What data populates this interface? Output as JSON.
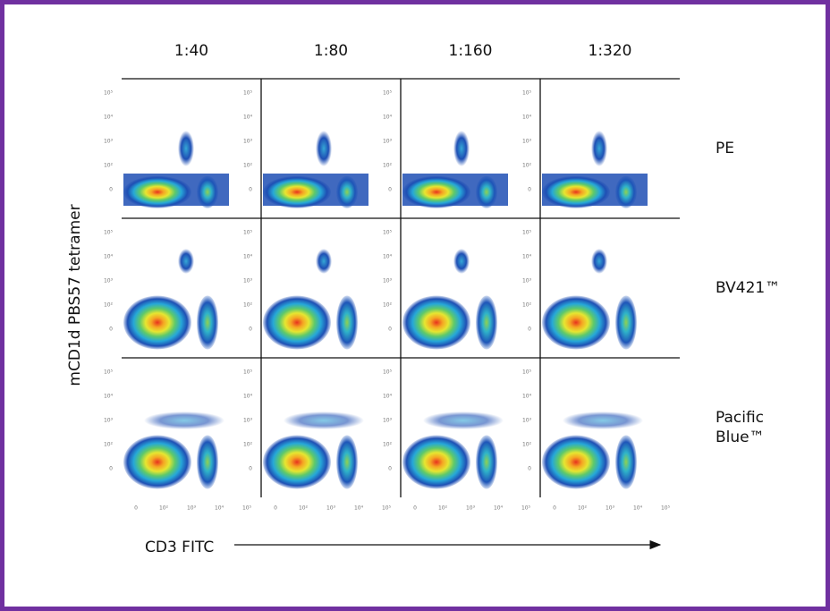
{
  "column_labels": [
    "1:40",
    "1:80",
    "1:160",
    "1:320"
  ],
  "row_labels": [
    [
      "PE"
    ],
    [
      "BV421™"
    ],
    [
      "Pacific",
      "Blue™"
    ]
  ],
  "y_axis_label": "mCD1d PBS57 tetramer",
  "x_axis_label": "CD3 FITC",
  "y_ticks": [
    "10⁵",
    "10⁴",
    "10³",
    "10²",
    "0"
  ],
  "x_ticks": [
    "0",
    "10²",
    "10³",
    "10⁴",
    "10⁵"
  ]
}
